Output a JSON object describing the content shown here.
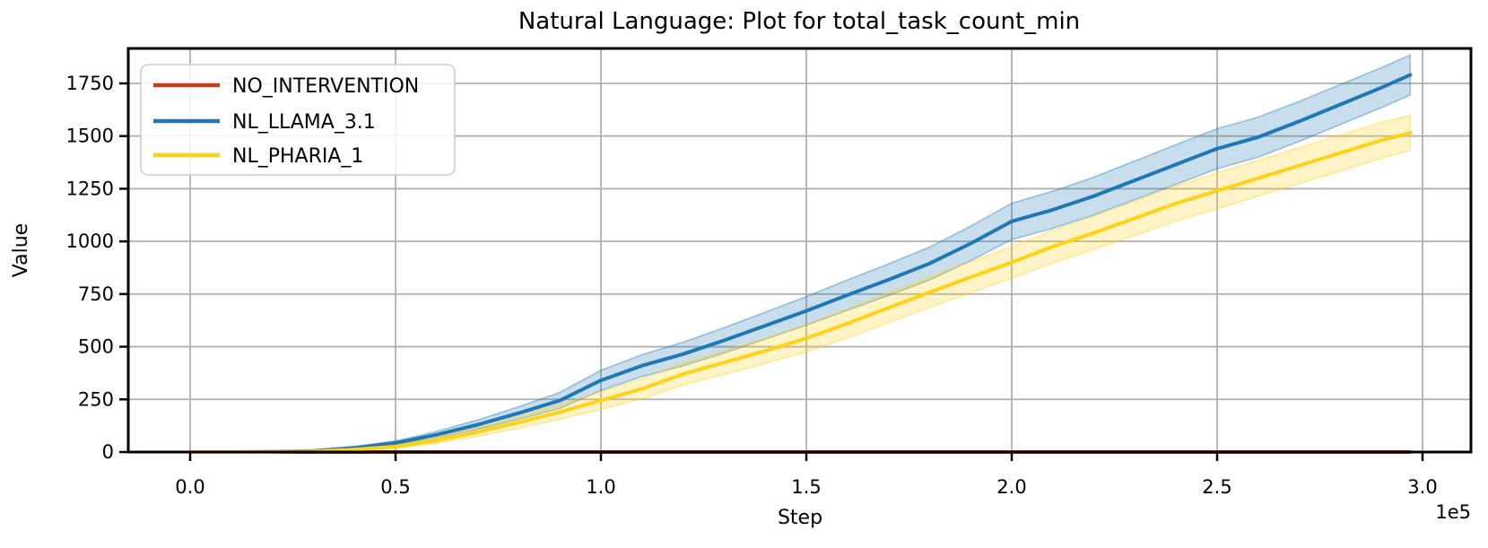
{
  "title": "Natural Language: Plot for total_task_count_min",
  "axes": {
    "xlabel": "Step",
    "ylabel": "Value",
    "x_offset_label": "1e5"
  },
  "legend": {
    "entries": [
      "NO_INTERVENTION",
      "NL_LLAMA_3.1",
      "NL_PHARIA_1"
    ]
  },
  "colors": {
    "no_intervention": "#cc3b16",
    "nl_llama": "#1f77b4",
    "nl_pharia": "#ffd117",
    "grid": "#b0b0b0",
    "spine": "#000000",
    "legend_border": "#cccccc",
    "background": "#ffffff"
  },
  "chart_data": {
    "type": "line",
    "title": "Natural Language: Plot for total_task_count_min",
    "xlabel": "Step",
    "ylabel": "Value",
    "x_multiplier": 100000,
    "x_offset_label": "1e5",
    "grid": true,
    "legend_position": "upper left",
    "xlim": [
      -0.15,
      3.12
    ],
    "ylim": [
      0,
      1915
    ],
    "xticks": [
      0.0,
      0.5,
      1.0,
      1.5,
      2.0,
      2.5,
      3.0
    ],
    "xtick_labels": [
      "0.0",
      "0.5",
      "1.0",
      "1.5",
      "2.0",
      "2.5",
      "3.0"
    ],
    "yticks": [
      0,
      250,
      500,
      750,
      1000,
      1250,
      1500,
      1750
    ],
    "ytick_labels": [
      "0",
      "250",
      "500",
      "750",
      "1000",
      "1250",
      "1500",
      "1750"
    ],
    "x": [
      0,
      0.1,
      0.2,
      0.3,
      0.4,
      0.5,
      0.6,
      0.7,
      0.8,
      0.9,
      1.0,
      1.1,
      1.2,
      1.3,
      1.4,
      1.5,
      1.6,
      1.7,
      1.8,
      1.9,
      2.0,
      2.1,
      2.2,
      2.3,
      2.4,
      2.5,
      2.6,
      2.7,
      2.8,
      2.9,
      2.97
    ],
    "series": [
      {
        "name": "NO_INTERVENTION",
        "color": "#cc3b16",
        "values": [
          0,
          0,
          0,
          0,
          0,
          0,
          0,
          0,
          0,
          0,
          0,
          0,
          0,
          0,
          0,
          0,
          0,
          0,
          0,
          0,
          0,
          0,
          0,
          0,
          0,
          0,
          0,
          0,
          0,
          0,
          0
        ]
      },
      {
        "name": "NL_LLAMA_3.1",
        "color": "#1f77b4",
        "values": [
          0,
          0,
          1,
          5,
          20,
          43,
          82,
          130,
          185,
          245,
          340,
          410,
          465,
          530,
          600,
          670,
          745,
          818,
          895,
          990,
          1095,
          1150,
          1215,
          1290,
          1365,
          1440,
          1495,
          1570,
          1650,
          1730,
          1790
        ],
        "band_halfwidth": [
          0,
          0,
          1,
          3,
          6,
          10,
          16,
          22,
          30,
          38,
          48,
          52,
          56,
          60,
          64,
          68,
          72,
          75,
          78,
          82,
          86,
          88,
          90,
          92,
          94,
          95,
          95,
          95,
          95,
          95,
          95
        ]
      },
      {
        "name": "NL_PHARIA_1",
        "color": "#ffd117",
        "values": [
          0,
          0,
          0,
          3,
          12,
          26,
          55,
          95,
          140,
          190,
          245,
          300,
          370,
          425,
          480,
          540,
          610,
          685,
          758,
          830,
          900,
          975,
          1040,
          1110,
          1180,
          1240,
          1300,
          1360,
          1420,
          1480,
          1515
        ],
        "band_halfwidth": [
          0,
          0,
          0,
          2,
          5,
          8,
          14,
          20,
          27,
          34,
          42,
          47,
          52,
          56,
          60,
          65,
          68,
          71,
          73,
          74,
          75,
          77,
          79,
          81,
          83,
          85,
          85,
          85,
          85,
          85,
          83
        ]
      }
    ]
  }
}
